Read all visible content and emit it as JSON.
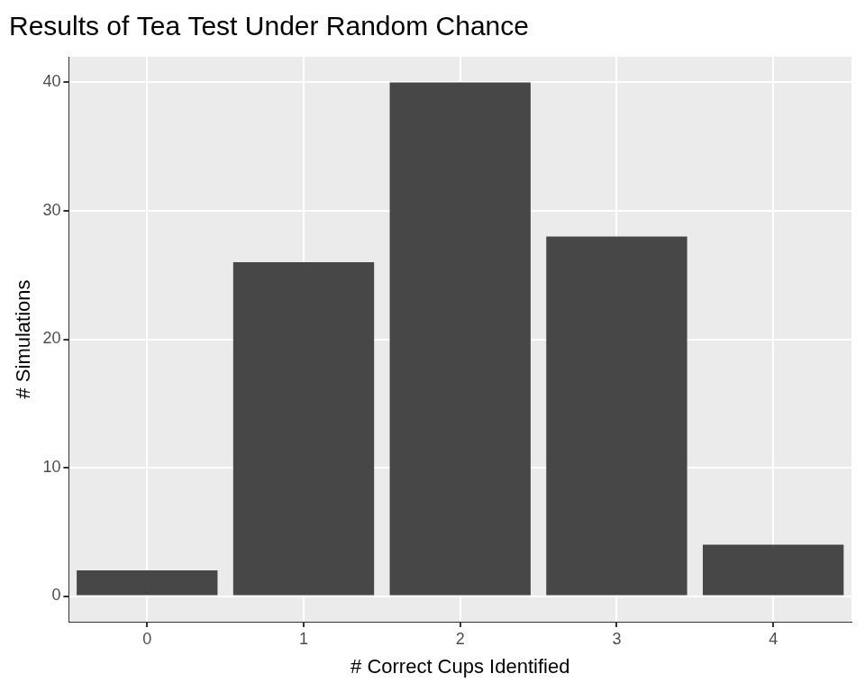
{
  "chart_data": {
    "type": "bar",
    "title": "Results of Tea Test Under Random Chance",
    "x_label": "# Correct Cups Identified",
    "y_label": "# Simulations",
    "categories": [
      "0",
      "1",
      "2",
      "3",
      "4"
    ],
    "values": [
      2,
      26,
      40,
      28,
      4
    ],
    "color": "#474747",
    "ylim": [
      -2,
      42
    ],
    "yticks": [
      0,
      10,
      20,
      30,
      40
    ],
    "grid": true
  }
}
